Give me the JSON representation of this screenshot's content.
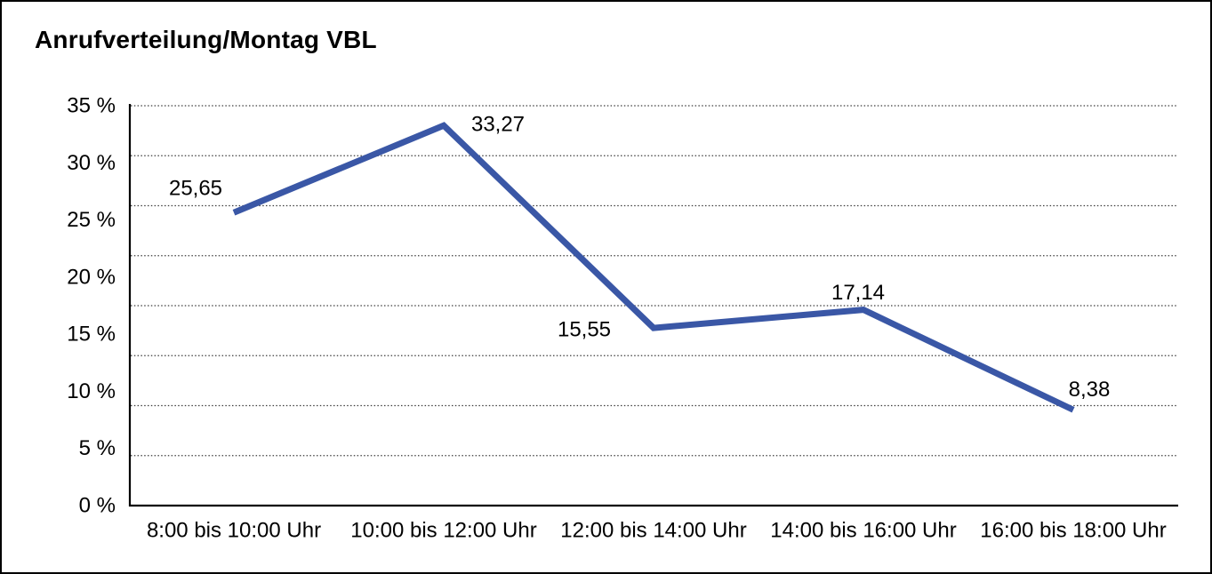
{
  "title": "Anrufverteilung/Montag VBL",
  "chart_data": {
    "type": "line",
    "title": "Anrufverteilung/Montag VBL",
    "categories": [
      "8:00 bis 10:00 Uhr",
      "10:00 bis 12:00 Uhr",
      "12:00 bis 14:00 Uhr",
      "14:00 bis 16:00 Uhr",
      "16:00 bis 18:00 Uhr"
    ],
    "series": [
      {
        "name": "Anrufverteilung Montag VBL",
        "values": [
          25.65,
          33.27,
          15.55,
          17.14,
          8.38
        ],
        "value_labels": [
          "25,65",
          "33,27",
          "15,55",
          "17,14",
          "8,38"
        ]
      }
    ],
    "xlabel": "",
    "ylabel": "",
    "ylim": [
      0,
      35
    ],
    "y_ticks": [
      {
        "value": 35,
        "label": "35 %"
      },
      {
        "value": 30,
        "label": "30 %"
      },
      {
        "value": 25,
        "label": "25 %"
      },
      {
        "value": 20,
        "label": "20 %"
      },
      {
        "value": 15,
        "label": "15 %"
      },
      {
        "value": 10,
        "label": "10 %"
      },
      {
        "value": 5,
        "label": "5 %"
      },
      {
        "value": 0,
        "label": "0 %"
      }
    ],
    "grid": "horizontal-dotted",
    "legend": "none"
  },
  "colors": {
    "line": "#3a57a6",
    "axis": "#000000",
    "grid": "#3c3c3c",
    "text": "#000000",
    "background": "#ffffff",
    "border": "#000000"
  }
}
